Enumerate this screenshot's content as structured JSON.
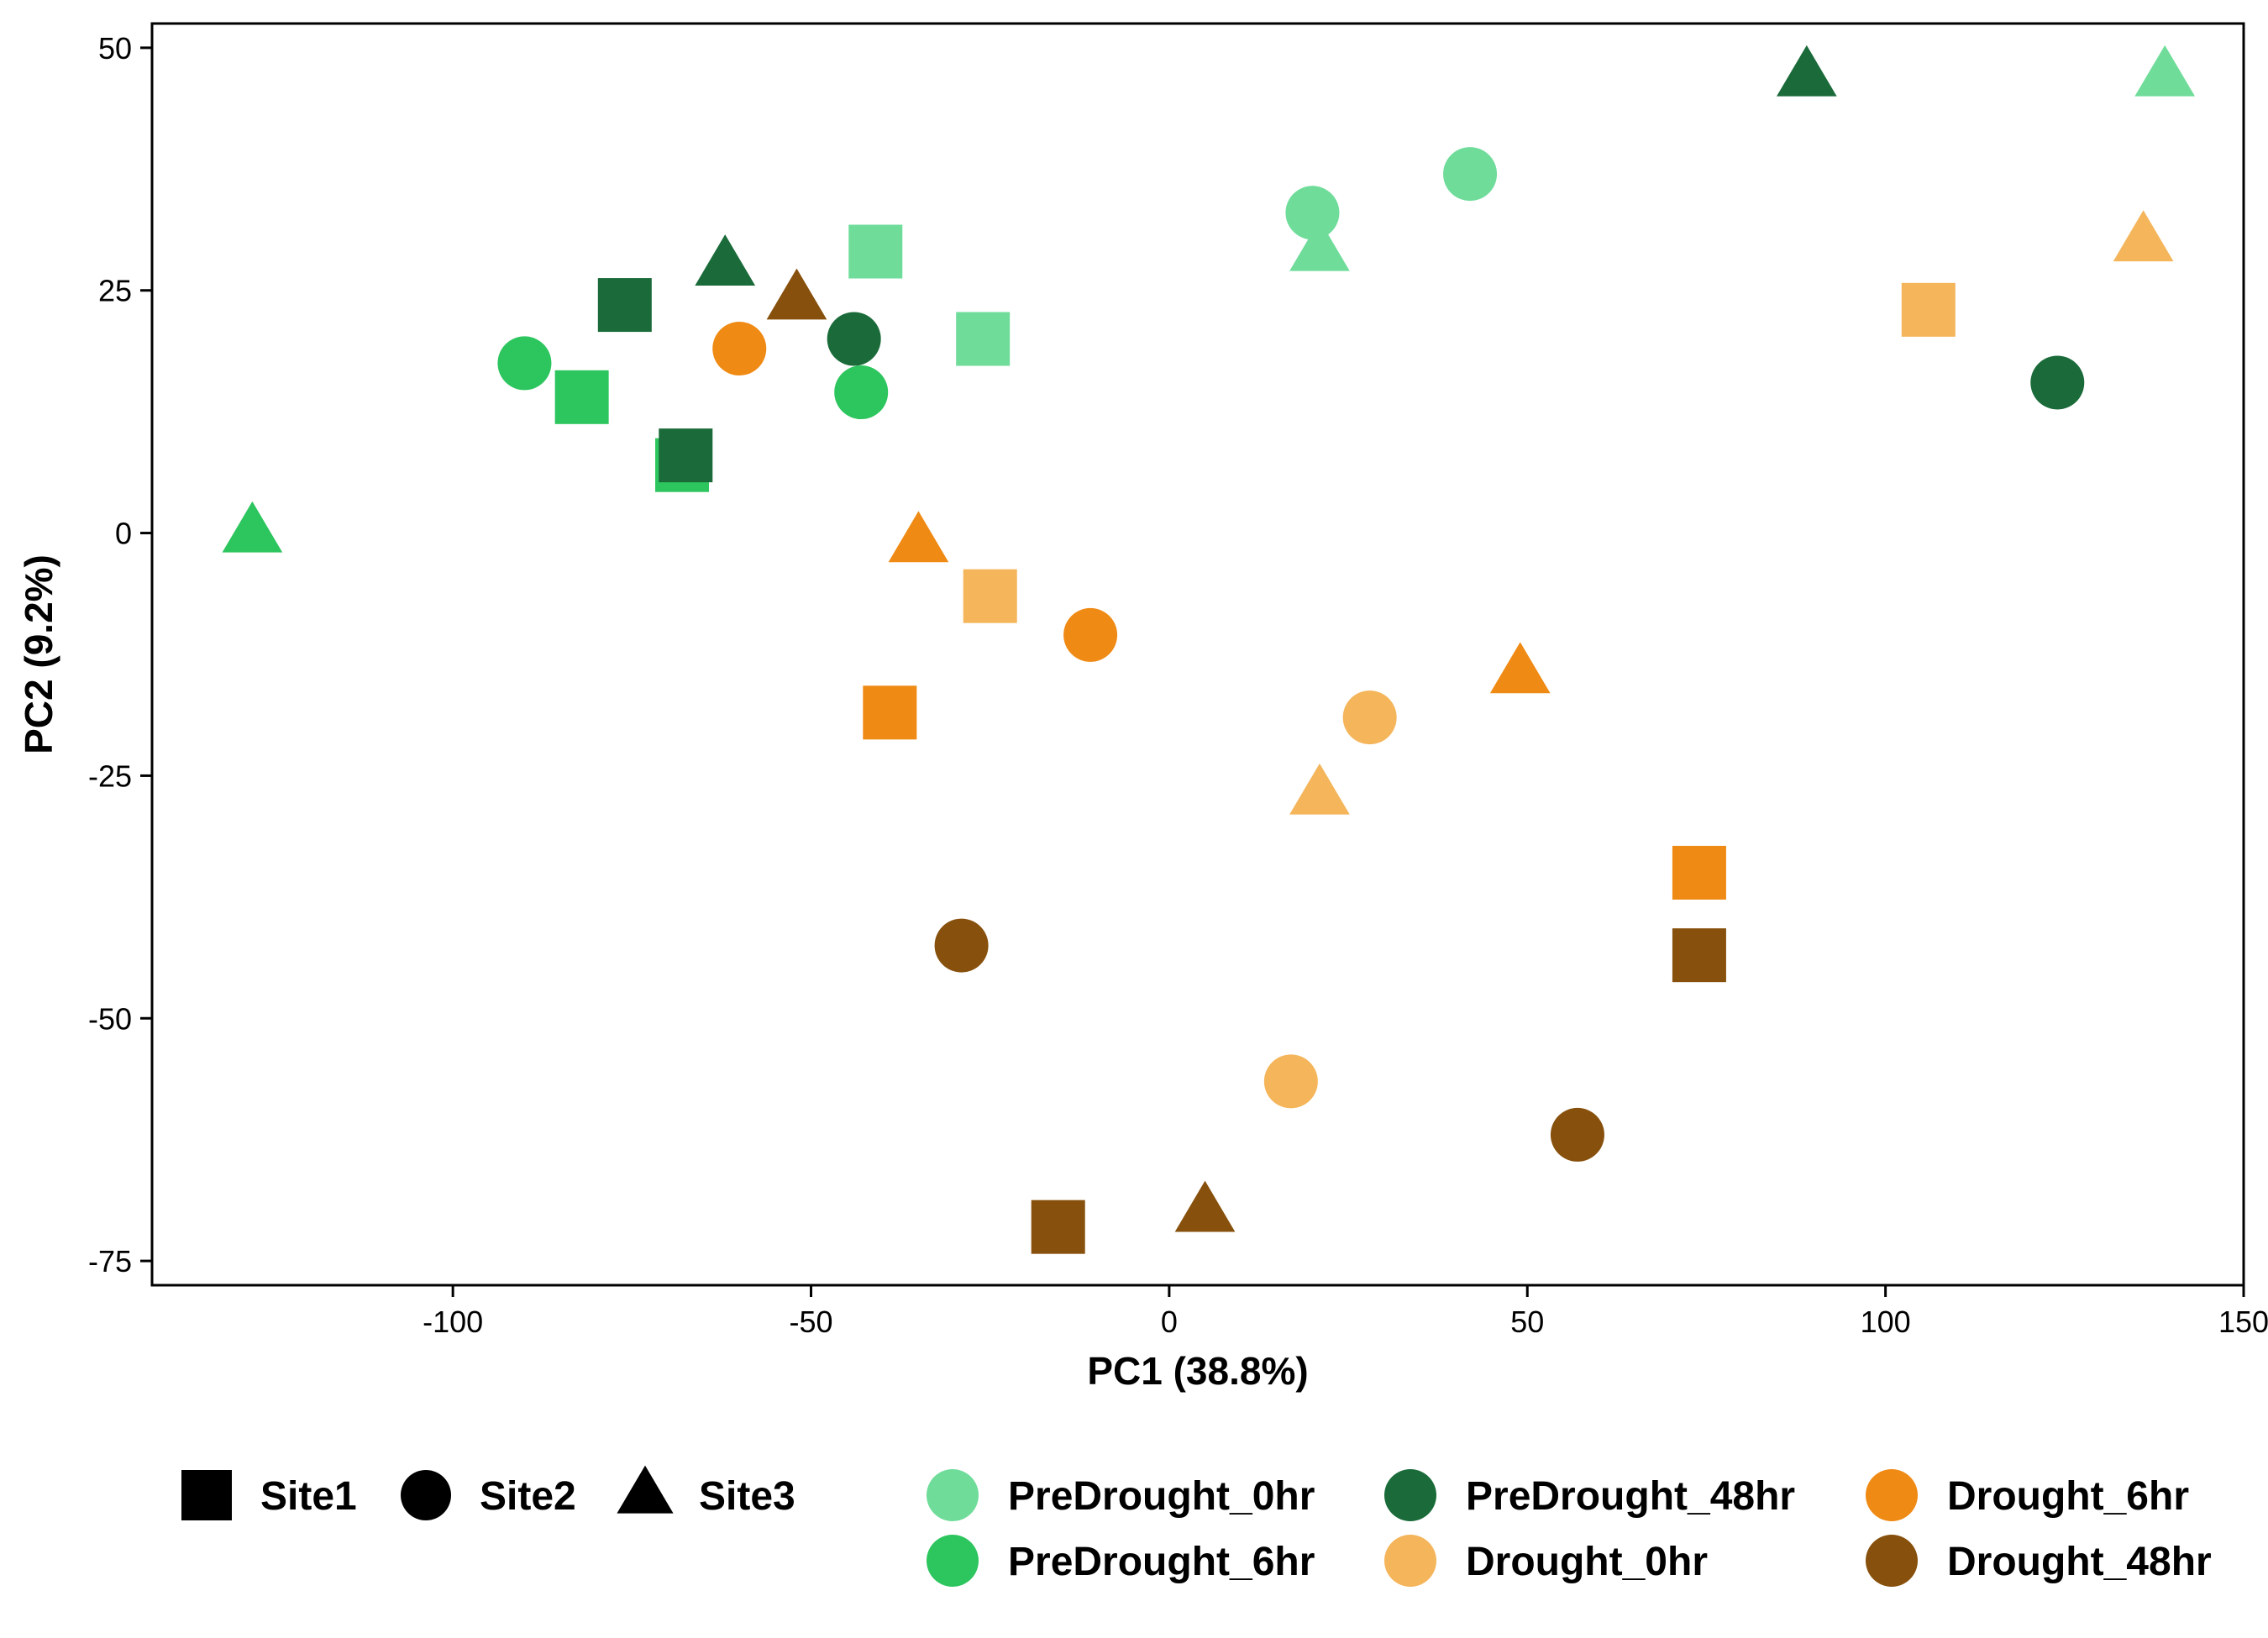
{
  "chart_data": {
    "type": "scatter",
    "xlabel": "PC1 (38.8%)",
    "ylabel": "PC2 (9.2%)",
    "xlim": [
      -142,
      150
    ],
    "ylim": [
      -77.5,
      52.5
    ],
    "x_ticks": [
      -100,
      -50,
      0,
      50,
      100,
      150
    ],
    "y_ticks": [
      50,
      25,
      0,
      -25,
      -50,
      -75
    ],
    "grid": false,
    "legend_position": "bottom",
    "shape_legend": [
      {
        "label": "Site1",
        "shape": "square"
      },
      {
        "label": "Site2",
        "shape": "circle"
      },
      {
        "label": "Site3",
        "shape": "triangle"
      }
    ],
    "groups": [
      {
        "name": "PreDrought_0hr",
        "color": "#6FDC9A"
      },
      {
        "name": "PreDrought_6hr",
        "color": "#2DC55E"
      },
      {
        "name": "PreDrought_48hr",
        "color": "#1B6B3A"
      },
      {
        "name": "Drought_0hr",
        "color": "#F4B55B"
      },
      {
        "name": "Drought_6hr",
        "color": "#EF8A14"
      },
      {
        "name": "Drought_48hr",
        "color": "#87500C"
      }
    ],
    "points": [
      {
        "x": -41,
        "y": 29,
        "site": "Site1",
        "group": "PreDrought_0hr"
      },
      {
        "x": -26,
        "y": 20,
        "site": "Site1",
        "group": "PreDrought_0hr"
      },
      {
        "x": 20,
        "y": 33,
        "site": "Site2",
        "group": "PreDrought_0hr"
      },
      {
        "x": 42,
        "y": 37,
        "site": "Site2",
        "group": "PreDrought_0hr"
      },
      {
        "x": 21,
        "y": 29,
        "site": "Site3",
        "group": "PreDrought_0hr"
      },
      {
        "x": 139,
        "y": 47,
        "site": "Site3",
        "group": "PreDrought_0hr"
      },
      {
        "x": -82,
        "y": 14,
        "site": "Site1",
        "group": "PreDrought_6hr"
      },
      {
        "x": -68,
        "y": 7,
        "site": "Site1",
        "group": "PreDrought_6hr"
      },
      {
        "x": -90,
        "y": 17.5,
        "site": "Site2",
        "group": "PreDrought_6hr"
      },
      {
        "x": -43,
        "y": 14.5,
        "site": "Site2",
        "group": "PreDrought_6hr"
      },
      {
        "x": -128,
        "y": 0,
        "site": "Site3",
        "group": "PreDrought_6hr"
      },
      {
        "x": -76,
        "y": 23.5,
        "site": "Site1",
        "group": "PreDrought_48hr"
      },
      {
        "x": -67.5,
        "y": 8,
        "site": "Site1",
        "group": "PreDrought_48hr"
      },
      {
        "x": -44,
        "y": 20,
        "site": "Site2",
        "group": "PreDrought_48hr"
      },
      {
        "x": 124,
        "y": 15.5,
        "site": "Site2",
        "group": "PreDrought_48hr"
      },
      {
        "x": -62,
        "y": 27.5,
        "site": "Site3",
        "group": "PreDrought_48hr"
      },
      {
        "x": 89,
        "y": 47,
        "site": "Site3",
        "group": "PreDrought_48hr"
      },
      {
        "x": -25,
        "y": -6.5,
        "site": "Site1",
        "group": "Drought_0hr"
      },
      {
        "x": 106,
        "y": 23,
        "site": "Site1",
        "group": "Drought_0hr"
      },
      {
        "x": 28,
        "y": -19,
        "site": "Site2",
        "group": "Drought_0hr"
      },
      {
        "x": 17,
        "y": -56.5,
        "site": "Site2",
        "group": "Drought_0hr"
      },
      {
        "x": 21,
        "y": -27,
        "site": "Site3",
        "group": "Drought_0hr"
      },
      {
        "x": 136,
        "y": 30,
        "site": "Site3",
        "group": "Drought_0hr"
      },
      {
        "x": -39,
        "y": -18.5,
        "site": "Site1",
        "group": "Drought_6hr"
      },
      {
        "x": 74,
        "y": -35,
        "site": "Site1",
        "group": "Drought_6hr"
      },
      {
        "x": -60,
        "y": 19,
        "site": "Site2",
        "group": "Drought_6hr"
      },
      {
        "x": -11,
        "y": -10.5,
        "site": "Site2",
        "group": "Drought_6hr"
      },
      {
        "x": -35,
        "y": -1,
        "site": "Site3",
        "group": "Drought_6hr"
      },
      {
        "x": 49,
        "y": -14.5,
        "site": "Site3",
        "group": "Drought_6hr"
      },
      {
        "x": -15.5,
        "y": -71.5,
        "site": "Site1",
        "group": "Drought_48hr"
      },
      {
        "x": 74,
        "y": -43.5,
        "site": "Site1",
        "group": "Drought_48hr"
      },
      {
        "x": -29,
        "y": -42.5,
        "site": "Site2",
        "group": "Drought_48hr"
      },
      {
        "x": 57,
        "y": -62,
        "site": "Site2",
        "group": "Drought_48hr"
      },
      {
        "x": -52,
        "y": 24,
        "site": "Site3",
        "group": "Drought_48hr"
      },
      {
        "x": 5,
        "y": -70,
        "site": "Site3",
        "group": "Drought_48hr"
      }
    ]
  }
}
